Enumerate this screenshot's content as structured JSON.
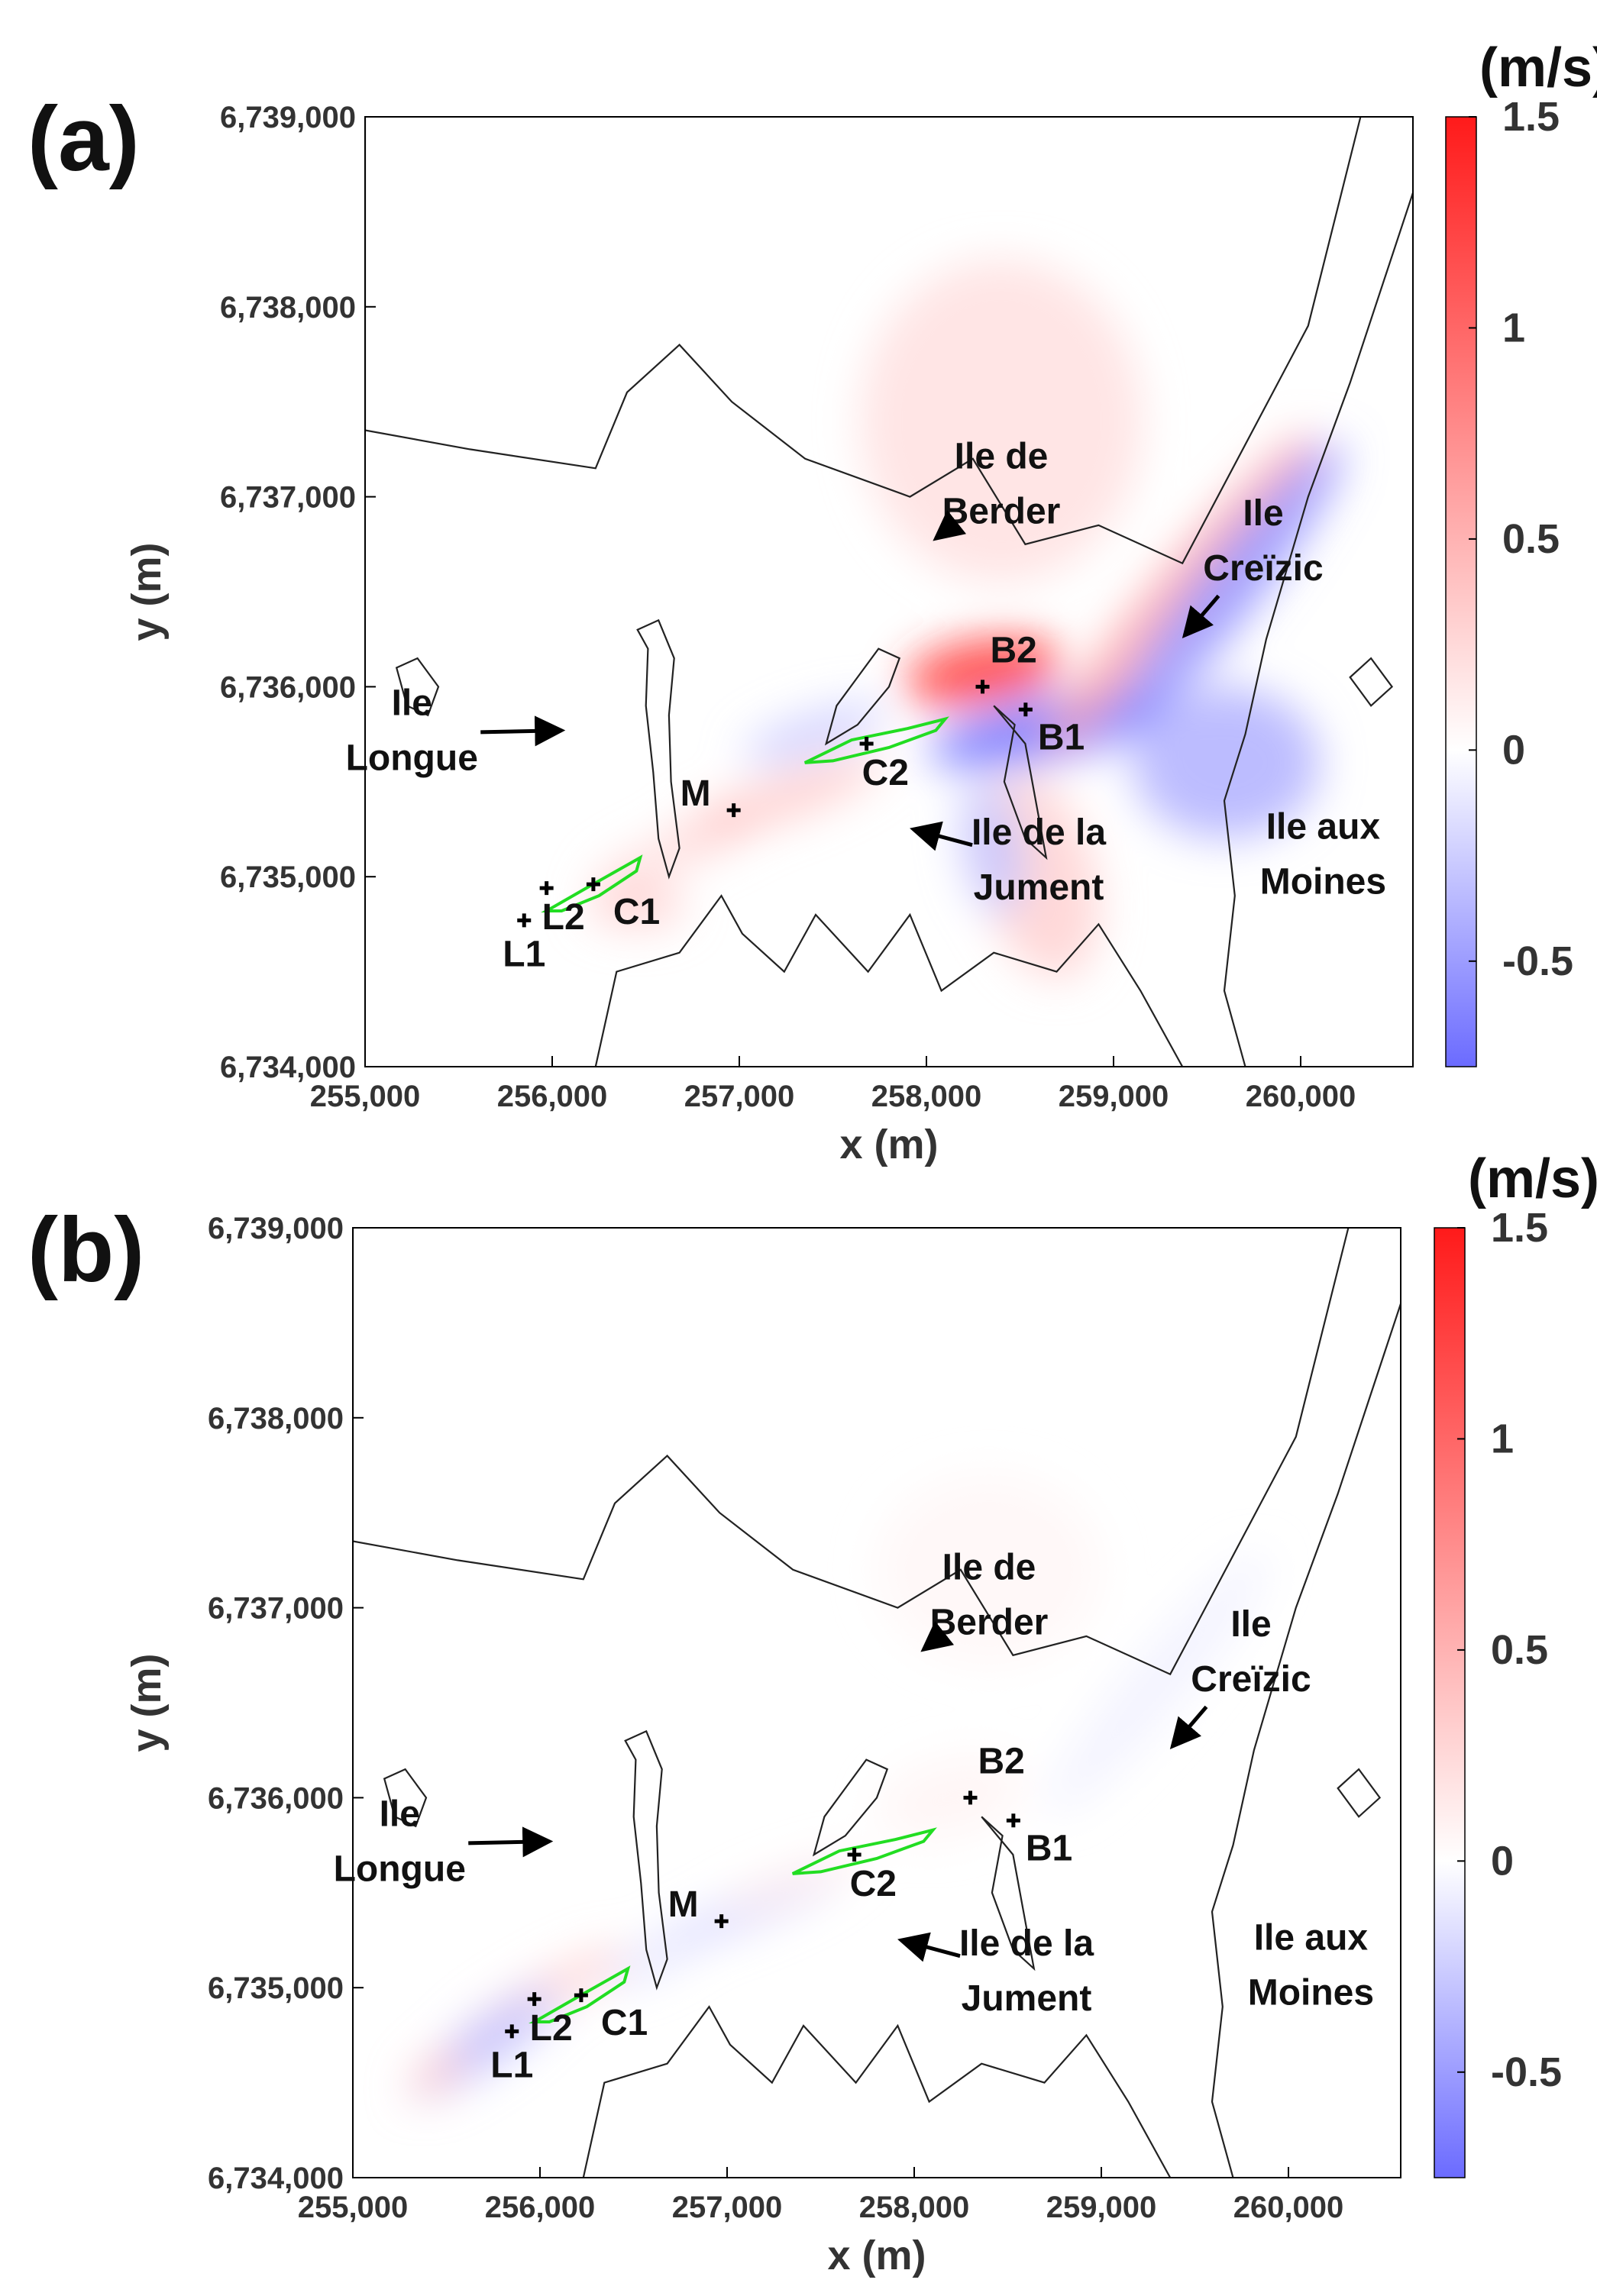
{
  "chart_data": [
    {
      "type": "heatmap",
      "panel_label": "(a)",
      "xlabel": "x (m)",
      "ylabel": "y (m)",
      "xlim": [
        255000,
        260600
      ],
      "ylim": [
        6734000,
        6739000
      ],
      "xticks": [
        255000,
        256000,
        257000,
        258000,
        259000,
        260000
      ],
      "xtick_labels": [
        "255,000",
        "256,000",
        "257,000",
        "258,000",
        "259,000",
        "260,000"
      ],
      "yticks": [
        6734000,
        6735000,
        6736000,
        6737000,
        6738000,
        6739000
      ],
      "ytick_labels": [
        "6,734,000",
        "6,735,000",
        "6,736,000",
        "6,737,000",
        "6,738,000",
        "6,739,000"
      ],
      "colorbar": {
        "unit": "(m/s)",
        "range": [
          -0.75,
          1.5
        ],
        "ticks": [
          -0.5,
          0,
          0.5,
          1,
          1.5
        ],
        "tick_labels": [
          "-0.5",
          "0",
          "0.5",
          "1",
          "1.5"
        ],
        "low_color": "#6b6bff",
        "mid_color": "#ffffff",
        "high_color": "#ff1a1a"
      },
      "points": [
        {
          "name": "B2",
          "x": 258300,
          "y": 6736000
        },
        {
          "name": "B1",
          "x": 258530,
          "y": 6735880
        },
        {
          "name": "C2",
          "x": 257680,
          "y": 6735700
        },
        {
          "name": "M",
          "x": 256970,
          "y": 6735350
        },
        {
          "name": "C1",
          "x": 256220,
          "y": 6734960
        },
        {
          "name": "L2",
          "x": 255970,
          "y": 6734940
        },
        {
          "name": "L1",
          "x": 255850,
          "y": 6734770
        }
      ],
      "annotations": [
        {
          "lines": [
            "Ile de",
            "Berder"
          ],
          "x": 258400,
          "y": 6737150,
          "arrow_to": [
            258050,
            6736780
          ]
        },
        {
          "lines": [
            "Ile",
            "Creïzic"
          ],
          "x": 259800,
          "y": 6736850,
          "arrow_to": [
            259380,
            6736270
          ]
        },
        {
          "lines": [
            "Ile",
            "Longue"
          ],
          "x": 255250,
          "y": 6735850,
          "arrow_to": [
            256050,
            6735770
          ]
        },
        {
          "lines": [
            "Ile de la",
            "Jument"
          ],
          "x": 258600,
          "y": 6735170,
          "arrow_to": [
            257930,
            6735250
          ]
        },
        {
          "lines": [
            "Ile aux",
            "Moines"
          ],
          "x": 260120,
          "y": 6735200
        }
      ],
      "velocity_blobs": [
        {
          "x": 258300,
          "y": 6736080,
          "rx": 420,
          "ry": 170,
          "rot": -10,
          "value": 1.3
        },
        {
          "x": 258650,
          "y": 6735780,
          "rx": 650,
          "ry": 170,
          "rot": -12,
          "value": -0.7
        },
        {
          "x": 259350,
          "y": 6736500,
          "rx": 1100,
          "ry": 130,
          "rot": -50,
          "value": 0.6
        },
        {
          "x": 259600,
          "y": 6736500,
          "rx": 1000,
          "ry": 160,
          "rot": -52,
          "value": -0.55
        },
        {
          "x": 258400,
          "y": 6737400,
          "rx": 750,
          "ry": 850,
          "rot": 0,
          "value": 0.2
        },
        {
          "x": 259600,
          "y": 6735600,
          "rx": 500,
          "ry": 400,
          "rot": 0,
          "value": -0.4
        },
        {
          "x": 258600,
          "y": 6735000,
          "rx": 300,
          "ry": 550,
          "rot": -15,
          "value": 0.3
        },
        {
          "x": 258350,
          "y": 6735150,
          "rx": 160,
          "ry": 350,
          "rot": -10,
          "value": -0.3
        },
        {
          "x": 257200,
          "y": 6735400,
          "rx": 600,
          "ry": 110,
          "rot": -20,
          "value": 0.35
        },
        {
          "x": 256700,
          "y": 6735150,
          "rx": 500,
          "ry": 90,
          "rot": -22,
          "value": 0.25
        },
        {
          "x": 257400,
          "y": 6735750,
          "rx": 400,
          "ry": 110,
          "rot": -18,
          "value": -0.25
        },
        {
          "x": 256950,
          "y": 6735300,
          "rx": 50,
          "ry": 40,
          "rot": 0,
          "value": 0.9
        },
        {
          "x": 256450,
          "y": 6734850,
          "rx": 260,
          "ry": 120,
          "rot": 0,
          "value": 0.3
        }
      ]
    },
    {
      "type": "heatmap",
      "panel_label": "(b)",
      "xlabel": "x (m)",
      "ylabel": "y (m)",
      "xlim": [
        255000,
        260600
      ],
      "ylim": [
        6734000,
        6739000
      ],
      "xticks": [
        255000,
        256000,
        257000,
        258000,
        259000,
        260000
      ],
      "xtick_labels": [
        "255,000",
        "256,000",
        "257,000",
        "258,000",
        "259,000",
        "260,000"
      ],
      "yticks": [
        6734000,
        6735000,
        6736000,
        6737000,
        6738000,
        6739000
      ],
      "ytick_labels": [
        "6,734,000",
        "6,735,000",
        "6,736,000",
        "6,737,000",
        "6,738,000",
        "6,739,000"
      ],
      "colorbar": {
        "unit": "(m/s)",
        "range": [
          -0.75,
          1.5
        ],
        "ticks": [
          -0.5,
          0,
          0.5,
          1,
          1.5
        ],
        "tick_labels": [
          "-0.5",
          "0",
          "0.5",
          "1",
          "1.5"
        ],
        "low_color": "#6b6bff",
        "mid_color": "#ffffff",
        "high_color": "#ff1a1a"
      },
      "points": [
        {
          "name": "B2",
          "x": 258300,
          "y": 6736000
        },
        {
          "name": "B1",
          "x": 258530,
          "y": 6735880
        },
        {
          "name": "C2",
          "x": 257680,
          "y": 6735700
        },
        {
          "name": "M",
          "x": 256970,
          "y": 6735350
        },
        {
          "name": "C1",
          "x": 256220,
          "y": 6734960
        },
        {
          "name": "L2",
          "x": 255970,
          "y": 6734940
        },
        {
          "name": "L1",
          "x": 255850,
          "y": 6734770
        }
      ],
      "annotations": [
        {
          "lines": [
            "Ile de",
            "Berder"
          ],
          "x": 258400,
          "y": 6737150,
          "arrow_to": [
            258050,
            6736780
          ]
        },
        {
          "lines": [
            "Ile",
            "Creïzic"
          ],
          "x": 259800,
          "y": 6736850,
          "arrow_to": [
            259380,
            6736270
          ]
        },
        {
          "lines": [
            "Ile",
            "Longue"
          ],
          "x": 255250,
          "y": 6735850,
          "arrow_to": [
            256050,
            6735770
          ]
        },
        {
          "lines": [
            "Ile de la",
            "Jument"
          ],
          "x": 258600,
          "y": 6735170,
          "arrow_to": [
            257930,
            6735250
          ]
        },
        {
          "lines": [
            "Ile aux",
            "Moines"
          ],
          "x": 260120,
          "y": 6735200
        }
      ],
      "velocity_blobs": [
        {
          "x": 256000,
          "y": 6734950,
          "rx": 520,
          "ry": 90,
          "rot": -30,
          "value": 0.3
        },
        {
          "x": 255700,
          "y": 6734700,
          "rx": 480,
          "ry": 110,
          "rot": -35,
          "value": -0.35
        },
        {
          "x": 255450,
          "y": 6734550,
          "rx": 180,
          "ry": 70,
          "rot": -40,
          "value": 0.4
        },
        {
          "x": 257100,
          "y": 6735400,
          "rx": 550,
          "ry": 80,
          "rot": -22,
          "value": -0.22
        },
        {
          "x": 257350,
          "y": 6735550,
          "rx": 400,
          "ry": 60,
          "rot": -20,
          "value": 0.15
        },
        {
          "x": 256600,
          "y": 6735150,
          "rx": 300,
          "ry": 70,
          "rot": -25,
          "value": -0.15
        },
        {
          "x": 258200,
          "y": 6736000,
          "rx": 400,
          "ry": 200,
          "rot": -15,
          "value": 0.07
        },
        {
          "x": 259300,
          "y": 6736600,
          "rx": 900,
          "ry": 150,
          "rot": -50,
          "value": -0.07
        },
        {
          "x": 258400,
          "y": 6737200,
          "rx": 600,
          "ry": 500,
          "rot": 0,
          "value": 0.05
        }
      ]
    }
  ]
}
